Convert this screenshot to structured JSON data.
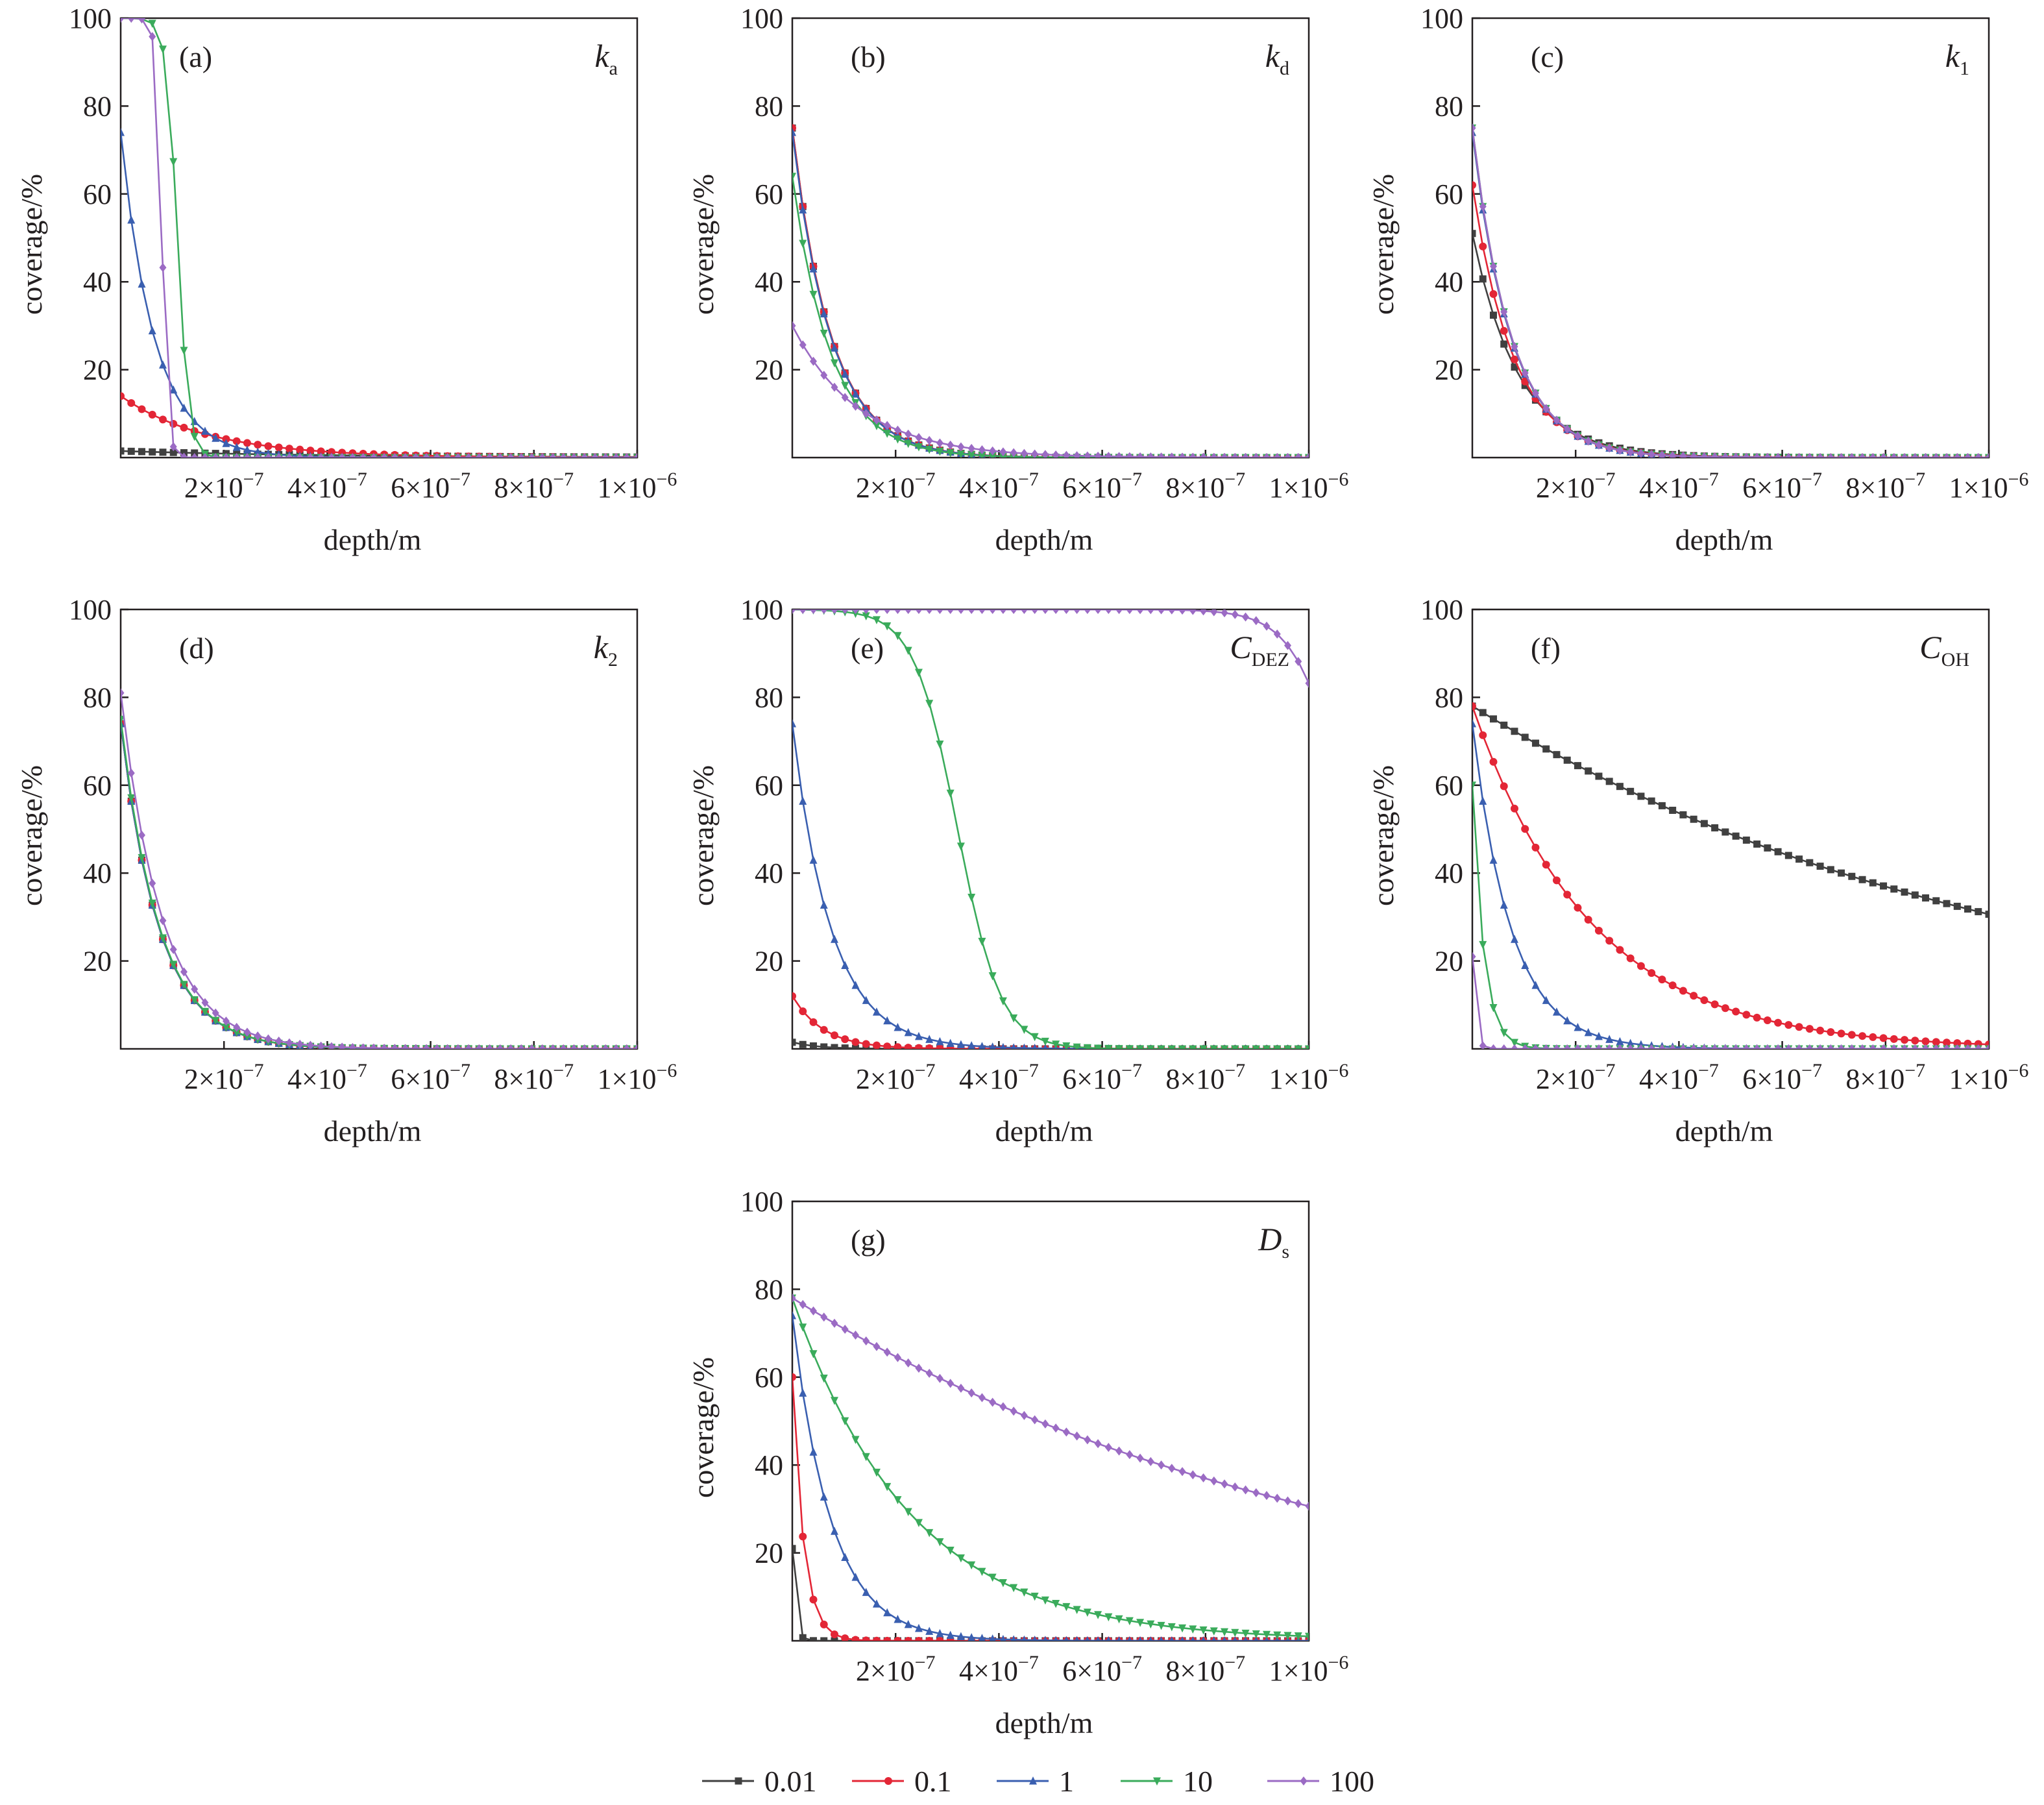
{
  "chart_data": {
    "type": "line",
    "xlabel": "depth/m",
    "ylabel": "coverage/%",
    "xlim": [
      0,
      1e-06
    ],
    "ylim": [
      0,
      100
    ],
    "x_ticks": [
      2e-07,
      4e-07,
      6e-07,
      8e-07,
      1e-06
    ],
    "x_tick_labels": [
      {
        "base": "2×10",
        "exp": "−7"
      },
      {
        "base": "4×10",
        "exp": "−7"
      },
      {
        "base": "6×10",
        "exp": "−7"
      },
      {
        "base": "8×10",
        "exp": "−7"
      },
      {
        "base": "1×10",
        "exp": "−6"
      }
    ],
    "y_ticks": [
      20,
      40,
      60,
      80,
      100
    ],
    "grid": false,
    "legend": {
      "placement": "bottom-center",
      "entries": [
        {
          "label": "0.01",
          "color": "#404040",
          "marker": "square"
        },
        {
          "label": "0.1",
          "color": "#e32636",
          "marker": "circle"
        },
        {
          "label": "1",
          "color": "#3a5fb0",
          "marker": "triangle-up"
        },
        {
          "label": "10",
          "color": "#3aab5b",
          "marker": "triangle-down"
        },
        {
          "label": "100",
          "color": "#9b6bc4",
          "marker": "diamond"
        }
      ]
    },
    "panels": [
      {
        "tag": "(a)",
        "param": "k",
        "param_sub": "a",
        "series": [
          {
            "name": "0.01",
            "model": "exp",
            "y0": 1.5,
            "L": 4e-07
          },
          {
            "name": "0.1",
            "model": "exp",
            "y0": 14,
            "L": 1.7e-07
          },
          {
            "name": "1",
            "model": "exp",
            "y0": 74,
            "L": 6.5e-08
          },
          {
            "name": "10",
            "model": "sig",
            "x50": 1.1e-07,
            "w": 1.1e-08
          },
          {
            "name": "100",
            "model": "sig",
            "x50": 8e-08,
            "w": 6e-09
          }
        ]
      },
      {
        "tag": "(b)",
        "param": "k",
        "param_sub": "d",
        "series": [
          {
            "name": "0.01",
            "model": "exp",
            "y0": 75,
            "L": 7.5e-08
          },
          {
            "name": "0.1",
            "model": "exp",
            "y0": 75,
            "L": 7.5e-08
          },
          {
            "name": "1",
            "model": "exp",
            "y0": 74,
            "L": 7.5e-08
          },
          {
            "name": "10",
            "model": "exp",
            "y0": 64,
            "L": 7.5e-08
          },
          {
            "name": "100",
            "model": "exp",
            "y0": 30,
            "L": 1.3e-07
          }
        ]
      },
      {
        "tag": "(c)",
        "param": "k",
        "param_sub": "1",
        "series": [
          {
            "name": "0.01",
            "model": "exp",
            "y0": 51,
            "L": 9e-08
          },
          {
            "name": "0.1",
            "model": "exp",
            "y0": 62,
            "L": 8e-08
          },
          {
            "name": "1",
            "model": "exp",
            "y0": 74,
            "L": 7.5e-08
          },
          {
            "name": "10",
            "model": "exp",
            "y0": 75,
            "L": 7.5e-08
          },
          {
            "name": "100",
            "model": "exp",
            "y0": 75,
            "L": 7.5e-08
          }
        ]
      },
      {
        "tag": "(d)",
        "param": "k",
        "param_sub": "2",
        "series": [
          {
            "name": "0.01",
            "model": "exp",
            "y0": 74,
            "L": 7.5e-08
          },
          {
            "name": "0.1",
            "model": "exp",
            "y0": 74,
            "L": 7.5e-08
          },
          {
            "name": "1",
            "model": "exp",
            "y0": 74,
            "L": 7.5e-08
          },
          {
            "name": "10",
            "model": "exp",
            "y0": 75,
            "L": 7.5e-08
          },
          {
            "name": "100",
            "model": "exp",
            "y0": 81,
            "L": 8e-08
          }
        ]
      },
      {
        "tag": "(e)",
        "param": "C",
        "param_sub": "DEZ",
        "series": [
          {
            "name": "0.01",
            "model": "exp",
            "y0": 1.5,
            "L": 5e-08
          },
          {
            "name": "0.1",
            "model": "exp",
            "y0": 12,
            "L": 6e-08
          },
          {
            "name": "1",
            "model": "exp",
            "y0": 74,
            "L": 7.5e-08
          },
          {
            "name": "10",
            "model": "sig",
            "x50": 3.2e-07,
            "w": 4.2e-08
          },
          {
            "name": "100",
            "model": "sig",
            "x50": 1.08e-06,
            "w": 5e-08
          }
        ]
      },
      {
        "tag": "(f)",
        "param": "C",
        "param_sub": "OH",
        "series": [
          {
            "name": "0.01",
            "model": "exp",
            "y0": 78,
            "L": 1.07e-06
          },
          {
            "name": "0.1",
            "model": "exp",
            "y0": 78,
            "L": 2.3e-07
          },
          {
            "name": "1",
            "model": "exp",
            "y0": 74,
            "L": 7.5e-08
          },
          {
            "name": "10",
            "model": "exp",
            "y0": 60,
            "L": 2.2e-08
          },
          {
            "name": "100",
            "model": "exp",
            "y0": 21,
            "L": 6e-09
          }
        ]
      },
      {
        "tag": "(g)",
        "param": "D",
        "param_sub": "s",
        "series": [
          {
            "name": "0.01",
            "model": "exp",
            "y0": 21,
            "L": 6e-09
          },
          {
            "name": "0.1",
            "model": "exp",
            "y0": 60,
            "L": 2.2e-08
          },
          {
            "name": "1",
            "model": "exp",
            "y0": 74,
            "L": 7.5e-08
          },
          {
            "name": "10",
            "model": "exp",
            "y0": 78,
            "L": 2.3e-07
          },
          {
            "name": "100",
            "model": "exp",
            "y0": 78,
            "L": 1.07e-06
          }
        ]
      }
    ]
  }
}
